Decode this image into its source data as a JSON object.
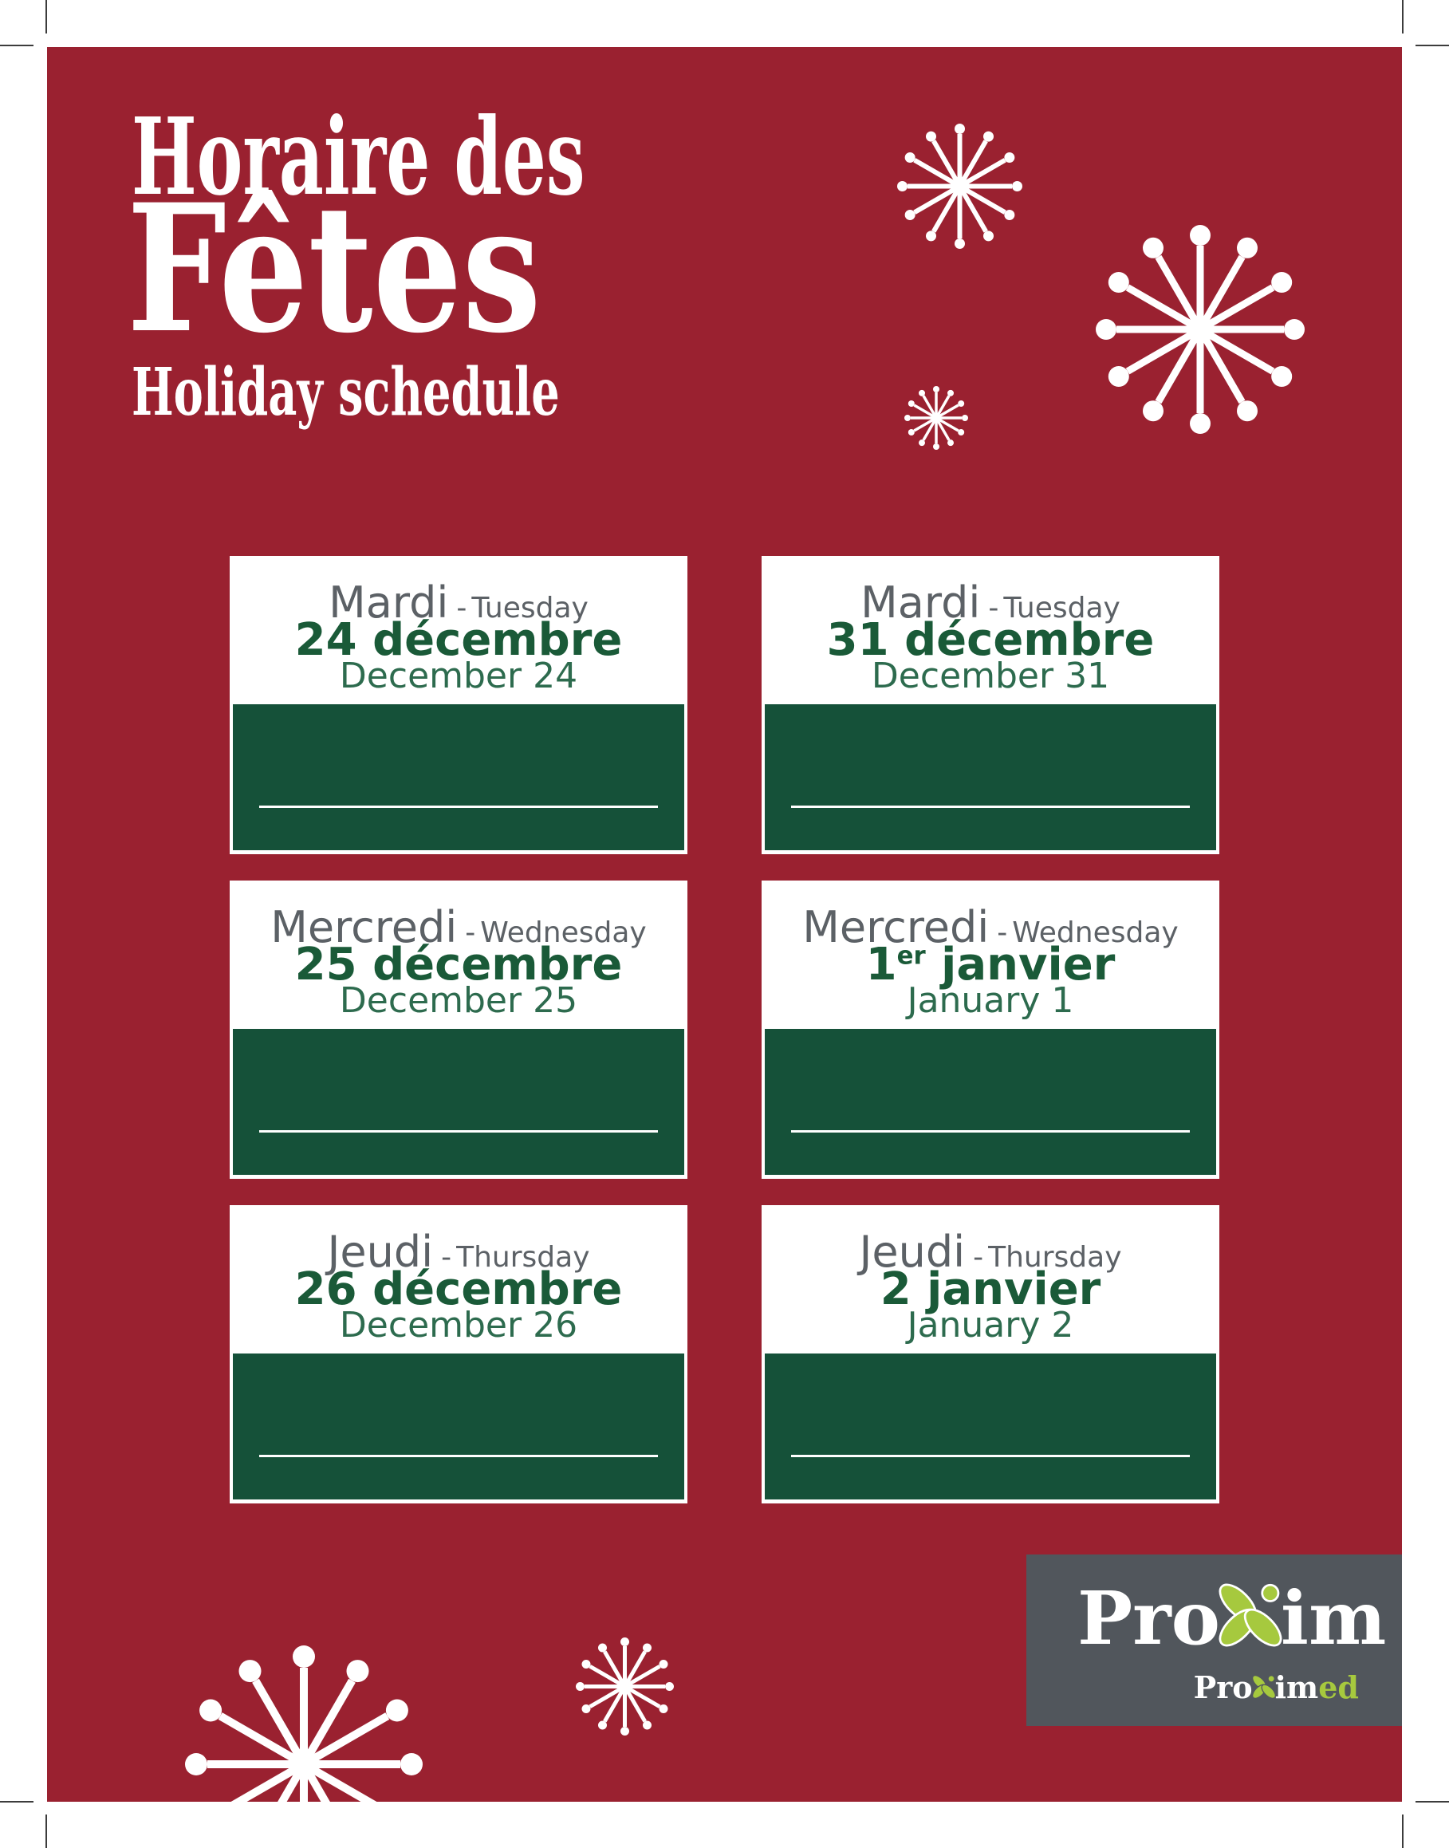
{
  "title": {
    "fr_line1": "Horaire des",
    "fr_line2": "Fêtes",
    "en": "Holiday schedule"
  },
  "day_separator": "-",
  "cards": [
    {
      "day_fr": "Mardi",
      "day_en": "Tuesday",
      "date_fr_main": "24 décembre",
      "date_fr_sup": "",
      "date_fr_rest": "",
      "date_en": "December 24"
    },
    {
      "day_fr": "Mardi",
      "day_en": "Tuesday",
      "date_fr_main": "31 décembre",
      "date_fr_sup": "",
      "date_fr_rest": "",
      "date_en": "December 31"
    },
    {
      "day_fr": "Mercredi",
      "day_en": "Wednesday",
      "date_fr_main": "25 décembre",
      "date_fr_sup": "",
      "date_fr_rest": "",
      "date_en": "December 25"
    },
    {
      "day_fr": "Mercredi",
      "day_en": "Wednesday",
      "date_fr_main": "1",
      "date_fr_sup": "er",
      "date_fr_rest": " janvier",
      "date_en": "January 1"
    },
    {
      "day_fr": "Jeudi",
      "day_en": "Thursday",
      "date_fr_main": "26 décembre",
      "date_fr_sup": "",
      "date_fr_rest": "",
      "date_en": "December 26"
    },
    {
      "day_fr": "Jeudi",
      "day_en": "Thursday",
      "date_fr_main": "2 janvier",
      "date_fr_sup": "",
      "date_fr_rest": "",
      "date_en": "January 2"
    }
  ],
  "logo": {
    "brand_pre": "Pro",
    "brand_post": "im",
    "sub_pre": "Pro",
    "sub_mid": "im",
    "sub_suffix": "ed"
  },
  "colors": {
    "background_red": "#9A2130",
    "card_panel_green": "#155139",
    "date_fr_green": "#1A5A38",
    "date_en_green": "#2D6B4E",
    "day_text_gray": "#5C6166",
    "logo_box_gray": "#51565C",
    "logo_leaf_green": "#A6C93E",
    "page_white": "#FFFFFF"
  }
}
